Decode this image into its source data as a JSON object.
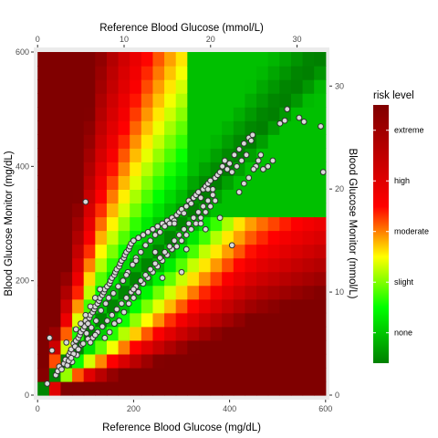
{
  "chart_data": {
    "type": "scatter",
    "background": "risk-level heatmap",
    "x_bottom": {
      "label": "Reference Blood Glucose (mg/dL)",
      "ticks": [
        0,
        200,
        400,
        600
      ],
      "range": [
        -8,
        608
      ]
    },
    "x_top": {
      "label": "Reference Blood Glucose (mmol/L)",
      "ticks": [
        0,
        10,
        20,
        30
      ],
      "ticks_mgdl": [
        0,
        180.2,
        360.4,
        540.5
      ]
    },
    "y_left": {
      "label": "Blood Glucose Monitor (mg/dL)",
      "ticks": [
        0,
        200,
        400,
        600
      ],
      "range": [
        -8,
        608
      ]
    },
    "y_right": {
      "label": "Blood Glucose Monitor (mmol/L)",
      "ticks": [
        0,
        10,
        20,
        30
      ],
      "ticks_mgdl": [
        0,
        180.2,
        360.4,
        540.5
      ]
    },
    "legend": {
      "title": "risk level",
      "placement": "right",
      "labels": [
        "extreme",
        "high",
        "moderate",
        "slight",
        "none"
      ],
      "label_values": [
        3.5,
        2.5,
        1.5,
        0.5,
        -0.5
      ],
      "range": [
        -1.1,
        4.0
      ],
      "gradient": [
        {
          "v": 4.0,
          "color": "#800000"
        },
        {
          "v": 2.0,
          "color": "#ff0000"
        },
        {
          "v": 1.0,
          "color": "#ffff00"
        },
        {
          "v": 0.0,
          "color": "#00ff00"
        },
        {
          "v": -1.1,
          "color": "#008000"
        }
      ]
    },
    "point_style": {
      "fill": "#d9d9d9",
      "stroke": "#333333"
    },
    "points": [
      {
        "x": 20,
        "y": 20
      },
      {
        "x": 25,
        "y": 100
      },
      {
        "x": 30,
        "y": 78
      },
      {
        "x": 38,
        "y": 35
      },
      {
        "x": 42,
        "y": 42
      },
      {
        "x": 45,
        "y": 50
      },
      {
        "x": 50,
        "y": 45
      },
      {
        "x": 55,
        "y": 55
      },
      {
        "x": 58,
        "y": 62
      },
      {
        "x": 60,
        "y": 92
      },
      {
        "x": 62,
        "y": 52
      },
      {
        "x": 65,
        "y": 70
      },
      {
        "x": 68,
        "y": 75
      },
      {
        "x": 70,
        "y": 80
      },
      {
        "x": 72,
        "y": 58
      },
      {
        "x": 75,
        "y": 90
      },
      {
        "x": 78,
        "y": 85
      },
      {
        "x": 80,
        "y": 95
      },
      {
        "x": 82,
        "y": 70
      },
      {
        "x": 85,
        "y": 100
      },
      {
        "x": 88,
        "y": 105
      },
      {
        "x": 90,
        "y": 110
      },
      {
        "x": 92,
        "y": 88
      },
      {
        "x": 95,
        "y": 115
      },
      {
        "x": 98,
        "y": 120
      },
      {
        "x": 100,
        "y": 130
      },
      {
        "x": 100,
        "y": 338
      },
      {
        "x": 102,
        "y": 108
      },
      {
        "x": 105,
        "y": 125
      },
      {
        "x": 108,
        "y": 135
      },
      {
        "x": 110,
        "y": 140
      },
      {
        "x": 112,
        "y": 118
      },
      {
        "x": 115,
        "y": 145
      },
      {
        "x": 118,
        "y": 150
      },
      {
        "x": 120,
        "y": 155
      },
      {
        "x": 122,
        "y": 130
      },
      {
        "x": 125,
        "y": 160
      },
      {
        "x": 128,
        "y": 165
      },
      {
        "x": 130,
        "y": 170
      },
      {
        "x": 132,
        "y": 148
      },
      {
        "x": 135,
        "y": 175
      },
      {
        "x": 138,
        "y": 180
      },
      {
        "x": 140,
        "y": 185
      },
      {
        "x": 142,
        "y": 160
      },
      {
        "x": 145,
        "y": 190
      },
      {
        "x": 148,
        "y": 170
      },
      {
        "x": 150,
        "y": 195
      },
      {
        "x": 152,
        "y": 200
      },
      {
        "x": 155,
        "y": 205
      },
      {
        "x": 158,
        "y": 178
      },
      {
        "x": 160,
        "y": 210
      },
      {
        "x": 162,
        "y": 215
      },
      {
        "x": 165,
        "y": 220
      },
      {
        "x": 168,
        "y": 190
      },
      {
        "x": 170,
        "y": 225
      },
      {
        "x": 172,
        "y": 230
      },
      {
        "x": 175,
        "y": 235
      },
      {
        "x": 178,
        "y": 200
      },
      {
        "x": 180,
        "y": 240
      },
      {
        "x": 182,
        "y": 245
      },
      {
        "x": 185,
        "y": 250
      },
      {
        "x": 188,
        "y": 215
      },
      {
        "x": 190,
        "y": 255
      },
      {
        "x": 192,
        "y": 260
      },
      {
        "x": 195,
        "y": 265
      },
      {
        "x": 198,
        "y": 228
      },
      {
        "x": 200,
        "y": 270
      },
      {
        "x": 205,
        "y": 240
      },
      {
        "x": 210,
        "y": 275
      },
      {
        "x": 215,
        "y": 250
      },
      {
        "x": 220,
        "y": 280
      },
      {
        "x": 225,
        "y": 262
      },
      {
        "x": 230,
        "y": 285
      },
      {
        "x": 235,
        "y": 270
      },
      {
        "x": 240,
        "y": 290
      },
      {
        "x": 245,
        "y": 280
      },
      {
        "x": 250,
        "y": 295
      },
      {
        "x": 255,
        "y": 285
      },
      {
        "x": 260,
        "y": 300
      },
      {
        "x": 265,
        "y": 295
      },
      {
        "x": 270,
        "y": 305
      },
      {
        "x": 275,
        "y": 300
      },
      {
        "x": 280,
        "y": 310
      },
      {
        "x": 285,
        "y": 305
      },
      {
        "x": 290,
        "y": 315
      },
      {
        "x": 295,
        "y": 320
      },
      {
        "x": 300,
        "y": 325
      },
      {
        "x": 305,
        "y": 318
      },
      {
        "x": 310,
        "y": 330
      },
      {
        "x": 315,
        "y": 340
      },
      {
        "x": 320,
        "y": 335
      },
      {
        "x": 325,
        "y": 345
      },
      {
        "x": 330,
        "y": 350
      },
      {
        "x": 335,
        "y": 355
      },
      {
        "x": 340,
        "y": 345
      },
      {
        "x": 345,
        "y": 360
      },
      {
        "x": 350,
        "y": 365
      },
      {
        "x": 355,
        "y": 370
      },
      {
        "x": 360,
        "y": 375
      },
      {
        "x": 365,
        "y": 360
      },
      {
        "x": 370,
        "y": 380
      },
      {
        "x": 375,
        "y": 385
      },
      {
        "x": 380,
        "y": 390
      },
      {
        "x": 385,
        "y": 400
      },
      {
        "x": 390,
        "y": 410
      },
      {
        "x": 395,
        "y": 395
      },
      {
        "x": 400,
        "y": 405
      },
      {
        "x": 405,
        "y": 390
      },
      {
        "x": 410,
        "y": 420
      },
      {
        "x": 415,
        "y": 400
      },
      {
        "x": 420,
        "y": 430
      },
      {
        "x": 425,
        "y": 410
      },
      {
        "x": 430,
        "y": 440
      },
      {
        "x": 435,
        "y": 420
      },
      {
        "x": 440,
        "y": 450
      },
      {
        "x": 445,
        "y": 445
      },
      {
        "x": 448,
        "y": 455
      },
      {
        "x": 455,
        "y": 400
      },
      {
        "x": 460,
        "y": 410
      },
      {
        "x": 465,
        "y": 420
      },
      {
        "x": 470,
        "y": 395
      },
      {
        "x": 480,
        "y": 400
      },
      {
        "x": 490,
        "y": 410
      },
      {
        "x": 505,
        "y": 475
      },
      {
        "x": 515,
        "y": 480
      },
      {
        "x": 520,
        "y": 500
      },
      {
        "x": 545,
        "y": 485
      },
      {
        "x": 555,
        "y": 478
      },
      {
        "x": 590,
        "y": 470
      },
      {
        "x": 595,
        "y": 390
      },
      {
        "x": 405,
        "y": 262
      },
      {
        "x": 150,
        "y": 110
      },
      {
        "x": 140,
        "y": 100
      },
      {
        "x": 160,
        "y": 125
      },
      {
        "x": 170,
        "y": 130
      },
      {
        "x": 180,
        "y": 145
      },
      {
        "x": 190,
        "y": 160
      },
      {
        "x": 200,
        "y": 170
      },
      {
        "x": 210,
        "y": 180
      },
      {
        "x": 220,
        "y": 195
      },
      {
        "x": 230,
        "y": 205
      },
      {
        "x": 240,
        "y": 215
      },
      {
        "x": 250,
        "y": 225
      },
      {
        "x": 260,
        "y": 235
      },
      {
        "x": 270,
        "y": 245
      },
      {
        "x": 280,
        "y": 255
      },
      {
        "x": 290,
        "y": 260
      },
      {
        "x": 300,
        "y": 270
      },
      {
        "x": 310,
        "y": 280
      },
      {
        "x": 320,
        "y": 290
      },
      {
        "x": 330,
        "y": 300
      },
      {
        "x": 340,
        "y": 310
      },
      {
        "x": 350,
        "y": 320
      },
      {
        "x": 360,
        "y": 330
      },
      {
        "x": 370,
        "y": 340
      },
      {
        "x": 110,
        "y": 155
      },
      {
        "x": 120,
        "y": 170
      },
      {
        "x": 100,
        "y": 140
      },
      {
        "x": 90,
        "y": 125
      },
      {
        "x": 80,
        "y": 115
      },
      {
        "x": 130,
        "y": 185
      },
      {
        "x": 115,
        "y": 100
      },
      {
        "x": 125,
        "y": 110
      },
      {
        "x": 135,
        "y": 120
      },
      {
        "x": 145,
        "y": 130
      },
      {
        "x": 155,
        "y": 140
      },
      {
        "x": 165,
        "y": 150
      },
      {
        "x": 175,
        "y": 160
      },
      {
        "x": 185,
        "y": 170
      },
      {
        "x": 195,
        "y": 180
      },
      {
        "x": 205,
        "y": 190
      },
      {
        "x": 215,
        "y": 200
      },
      {
        "x": 225,
        "y": 210
      },
      {
        "x": 235,
        "y": 220
      },
      {
        "x": 245,
        "y": 230
      },
      {
        "x": 255,
        "y": 240
      },
      {
        "x": 265,
        "y": 250
      },
      {
        "x": 275,
        "y": 260
      },
      {
        "x": 285,
        "y": 270
      },
      {
        "x": 295,
        "y": 280
      },
      {
        "x": 305,
        "y": 290
      },
      {
        "x": 315,
        "y": 300
      },
      {
        "x": 325,
        "y": 310
      },
      {
        "x": 335,
        "y": 320
      },
      {
        "x": 345,
        "y": 330
      },
      {
        "x": 355,
        "y": 340
      },
      {
        "x": 365,
        "y": 350
      },
      {
        "x": 85,
        "y": 80
      },
      {
        "x": 95,
        "y": 90
      },
      {
        "x": 105,
        "y": 98
      },
      {
        "x": 75,
        "y": 72
      },
      {
        "x": 65,
        "y": 60
      },
      {
        "x": 70,
        "y": 65
      },
      {
        "x": 110,
        "y": 92
      },
      {
        "x": 120,
        "y": 105
      },
      {
        "x": 200,
        "y": 185
      },
      {
        "x": 260,
        "y": 205
      },
      {
        "x": 310,
        "y": 255
      },
      {
        "x": 300,
        "y": 215
      },
      {
        "x": 350,
        "y": 290
      },
      {
        "x": 380,
        "y": 310
      },
      {
        "x": 430,
        "y": 370
      },
      {
        "x": 440,
        "y": 380
      },
      {
        "x": 420,
        "y": 355
      },
      {
        "x": 450,
        "y": 395
      },
      {
        "x": 340,
        "y": 300
      },
      {
        "x": 355,
        "y": 360
      },
      {
        "x": 285,
        "y": 300
      },
      {
        "x": 245,
        "y": 250
      },
      {
        "x": 205,
        "y": 235
      },
      {
        "x": 185,
        "y": 210
      }
    ]
  }
}
